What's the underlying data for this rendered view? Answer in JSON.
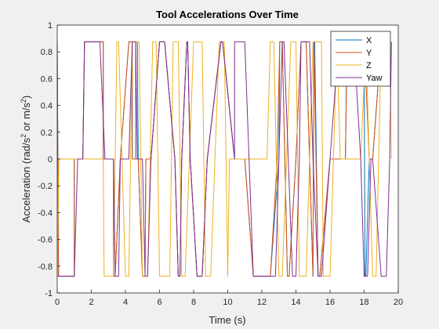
{
  "chart_data": {
    "type": "line",
    "title": "Tool Accelerations Over Time",
    "xlabel": "Time (s)",
    "ylabel_parts": [
      "Acceleration (rad/s",
      "2",
      " or m/s",
      "2",
      ")"
    ],
    "xlim": [
      0,
      20
    ],
    "ylim": [
      -1,
      1
    ],
    "xticks": [
      0,
      2,
      4,
      6,
      8,
      10,
      12,
      14,
      16,
      18,
      20
    ],
    "yticks": [
      -1,
      -0.8,
      -0.6,
      -0.4,
      -0.2,
      0,
      0.2,
      0.4,
      0.6,
      0.8,
      1
    ],
    "xtick_labels": [
      "0",
      "2",
      "4",
      "6",
      "8",
      "10",
      "12",
      "14",
      "16",
      "18",
      "20"
    ],
    "ytick_labels": [
      "-1",
      "-0.8",
      "-0.6",
      "-0.4",
      "-0.2",
      "0",
      "0.2",
      "0.4",
      "0.6",
      "0.8",
      "1"
    ],
    "grid": false,
    "legend_position": "top-right",
    "series": [
      {
        "name": "X",
        "color": "#0072BD",
        "x": [
          0,
          0.08,
          0.3,
          1.0,
          1.0,
          1.5,
          1.6,
          2.7,
          2.7,
          3.3,
          3.3,
          3.4,
          3.7,
          3.7,
          4.2,
          4.4,
          4.4,
          4.6,
          4.6,
          4.7,
          4.75,
          5.0,
          5.15,
          5.2,
          5.5,
          6.0,
          6.3,
          6.9,
          7.1,
          7.2,
          7.3,
          7.6,
          7.65,
          7.8,
          8.2,
          8.5,
          8.8,
          9.6,
          9.7,
          10.4,
          11.0,
          11.5,
          12.5,
          13.0,
          13.05,
          13.2,
          13.5,
          13.6,
          14.0,
          14.3,
          14.6,
          15.0,
          15.05,
          15.1,
          15.3,
          15.4,
          16.0,
          16.9,
          17.0,
          18.0,
          18.05,
          18.1,
          18.3,
          18.5,
          19.0,
          19.5
        ],
        "y": [
          0.875,
          -0.875,
          -0.875,
          -0.875,
          0,
          0,
          0.875,
          0.875,
          0,
          0,
          -0.875,
          -0.875,
          0,
          0,
          0.875,
          0.875,
          0,
          0,
          0.875,
          0.875,
          0,
          -0.875,
          -0.875,
          0,
          0,
          0.875,
          0.875,
          0,
          -0.875,
          -0.875,
          0,
          0.875,
          0.875,
          0,
          -0.875,
          -0.875,
          0,
          0.875,
          0.875,
          0,
          0,
          -0.875,
          -0.875,
          0,
          0.875,
          0.875,
          -0.875,
          -0.875,
          0,
          0.875,
          0.875,
          -0.875,
          0.875,
          0.875,
          -0.875,
          -0.875,
          0,
          0,
          0.875,
          0.875,
          -0.875,
          -0.875,
          0,
          0,
          0.875,
          0.875
        ]
      },
      {
        "name": "Y",
        "color": "#D95319",
        "x": [
          0,
          0.08,
          0.3,
          1.0,
          1.0,
          1.5,
          1.6,
          2.7,
          2.7,
          3.3,
          3.3,
          3.4,
          3.7,
          3.7,
          4.2,
          4.4,
          4.4,
          4.6,
          4.75,
          5.0,
          5.15,
          5.2,
          5.5,
          6.0,
          6.3,
          6.9,
          7.1,
          7.2,
          7.3,
          7.6,
          7.65,
          7.8,
          8.2,
          8.5,
          8.8,
          9.6,
          9.7,
          10.4,
          11.0,
          11.5,
          12.5,
          12.9,
          13.05,
          13.2,
          13.5,
          13.6,
          14.0,
          14.3,
          14.6,
          15.0,
          15.05,
          15.3,
          15.4,
          16.0,
          16.9,
          17.0,
          18.0,
          18.3,
          18.5,
          19.0,
          19.5
        ],
        "y": [
          0.875,
          -0.875,
          -0.875,
          -0.875,
          0,
          0,
          0.875,
          0.875,
          0,
          0,
          -0.875,
          -0.875,
          0,
          0,
          0.875,
          0.875,
          0,
          0,
          0,
          -0.875,
          -0.875,
          0,
          0,
          0.875,
          0.875,
          0,
          -0.875,
          -0.875,
          0,
          0.875,
          0.875,
          0,
          -0.875,
          -0.875,
          0,
          0.875,
          0.875,
          0,
          0,
          -0.875,
          -0.875,
          0,
          0.875,
          0.875,
          -0.875,
          -0.875,
          0,
          0.875,
          0.875,
          -0.875,
          0.875,
          -0.875,
          -0.875,
          0,
          0,
          0.875,
          0.875,
          0,
          0,
          0.875,
          0.875
        ]
      },
      {
        "name": "Z",
        "color": "#EDB120",
        "x": [
          0,
          0.1,
          0.2,
          1.2,
          1.3,
          2.7,
          2.75,
          3.3,
          3.5,
          3.6,
          4.0,
          4.2,
          4.4,
          4.8,
          5.0,
          5.3,
          5.6,
          5.8,
          6.0,
          6.6,
          6.8,
          7.1,
          7.3,
          7.5,
          8.0,
          8.5,
          8.7,
          9.0,
          9.5,
          9.8,
          10.0,
          10.1,
          10.6,
          12.3,
          12.5,
          12.7,
          13.0,
          13.2,
          13.7,
          14.0,
          14.2,
          14.6,
          15.0,
          15.5,
          15.6,
          16.0,
          16.4,
          16.6,
          17.4,
          17.8,
          18.1,
          18.5,
          18.7,
          19.0,
          19.5,
          19.6
        ],
        "y": [
          -0.875,
          0,
          0,
          0,
          0,
          0,
          -0.875,
          -0.875,
          0.875,
          0.875,
          -0.875,
          -0.875,
          0.875,
          0.875,
          -0.875,
          -0.875,
          0.875,
          0.875,
          -0.875,
          -0.875,
          0.875,
          0.875,
          -0.875,
          -0.875,
          0.875,
          0.875,
          -0.875,
          -0.875,
          0.875,
          0.875,
          -0.875,
          0,
          0,
          0,
          0.875,
          0.875,
          -0.875,
          -0.875,
          0.875,
          0.875,
          -0.875,
          -0.875,
          0.875,
          0.875,
          -0.875,
          -0.875,
          0.875,
          0,
          0,
          0,
          0.875,
          -0.875,
          -0.875,
          0.875,
          0.875,
          0
        ]
      },
      {
        "name": "Yaw",
        "color": "#7E2F8E",
        "x": [
          0,
          0.08,
          0.9,
          1.0,
          1.2,
          1.3,
          1.4,
          1.5,
          1.6,
          2.5,
          2.5,
          2.8,
          2.8,
          3.3,
          3.4,
          3.6,
          3.7,
          4.2,
          4.4,
          4.6,
          4.7,
          5.0,
          5.15,
          5.3,
          5.5,
          6.0,
          6.3,
          6.9,
          7.1,
          7.2,
          7.3,
          7.6,
          7.65,
          7.8,
          8.2,
          8.5,
          8.8,
          9.6,
          9.7,
          10.4,
          10.4,
          11.0,
          11.5,
          12.0,
          12.5,
          12.8,
          13.0,
          13.2,
          13.3,
          13.8,
          14.0,
          14.2,
          14.3,
          14.8,
          15.0,
          15.3,
          15.5,
          16.0,
          16.5,
          17.0,
          17.4,
          17.8,
          18.0,
          18.2,
          18.4,
          18.5,
          19.0,
          19.3,
          19.5,
          19.6
        ],
        "y": [
          -0.875,
          -0.875,
          -0.875,
          -0.875,
          0,
          0,
          0,
          0,
          0.875,
          0.875,
          0.875,
          0,
          0,
          0,
          -0.875,
          -0.875,
          0,
          0,
          0.875,
          0.875,
          0,
          0,
          -0.875,
          -0.875,
          0,
          0.875,
          0.875,
          0,
          -0.875,
          -0.875,
          0,
          0.875,
          0.875,
          0,
          -0.875,
          -0.875,
          0,
          0.875,
          0.875,
          0,
          0.875,
          0.875,
          -0.875,
          -0.875,
          -0.875,
          -0.875,
          0,
          0.875,
          0.875,
          -0.875,
          -0.875,
          0,
          0.875,
          0.875,
          0,
          -0.875,
          -0.875,
          0,
          0.875,
          0.875,
          0.875,
          0,
          -0.875,
          -0.875,
          0,
          0,
          -0.875,
          -0.875,
          0,
          0.875
        ]
      }
    ]
  }
}
